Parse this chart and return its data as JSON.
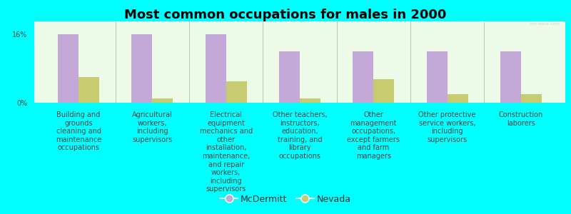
{
  "title": "Most common occupations for males in 2000",
  "background_color": "#00FFFF",
  "plot_bg_color": "#EEFAE8",
  "categories": [
    "Building and\ngrounds\ncleaning and\nmaintenance\noccupations",
    "Agricultural\nworkers,\nincluding\nsupervisors",
    "Electrical\nequipment\nmechanics and\nother\ninstallation,\nmaintenance,\nand repair\nworkers,\nincluding\nsupervisors",
    "Other teachers,\ninstructors,\neducation,\ntraining, and\nlibrary\noccupations",
    "Other\nmanagement\noccupations,\nexcept farmers\nand farm\nmanagers",
    "Other protective\nservice workers,\nincluding\nsupervisors",
    "Construction\nlaborers"
  ],
  "mcdermitt_values": [
    16.0,
    16.0,
    16.0,
    12.0,
    12.0,
    12.0,
    12.0
  ],
  "nevada_values": [
    6.0,
    1.0,
    5.0,
    1.0,
    5.5,
    2.0,
    2.0
  ],
  "mcdermitt_color": "#C4A8D8",
  "nevada_color": "#C8CC70",
  "bar_width": 0.28,
  "ylim": [
    0,
    19
  ],
  "yticks": [
    0,
    16
  ],
  "ytick_labels": [
    "0%",
    "16%"
  ],
  "legend_mcdermitt": "McDermitt",
  "legend_nevada": "Nevada",
  "title_fontsize": 13,
  "tick_fontsize": 7,
  "legend_fontsize": 9,
  "label_color": "#404040",
  "legend_text_color": "#303030",
  "watermark": "city-data.com"
}
